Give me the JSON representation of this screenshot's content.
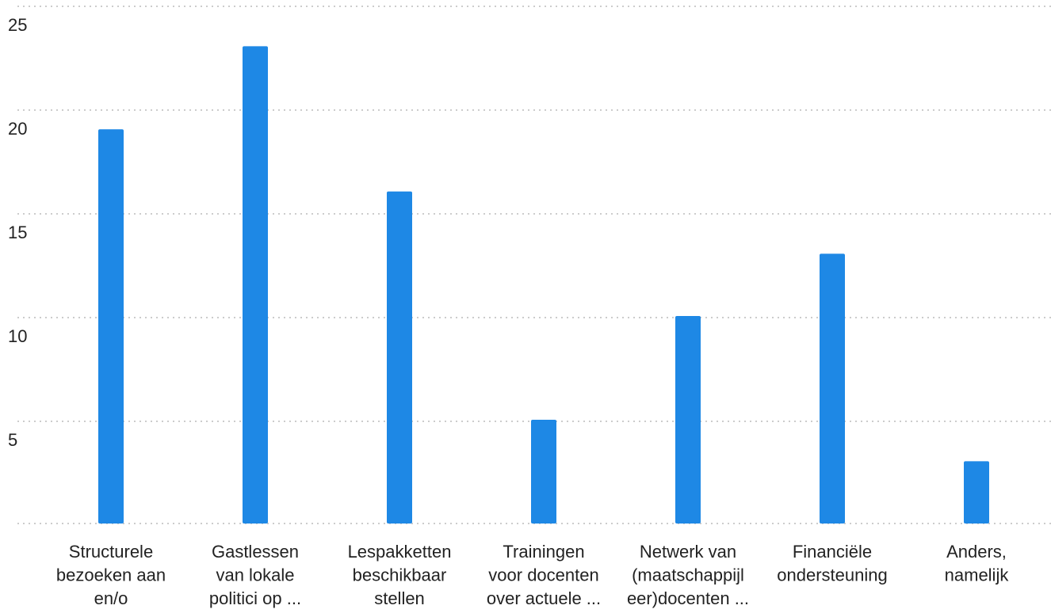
{
  "chart_data": {
    "type": "bar",
    "categories": [
      [
        "Structurele",
        "bezoeken aan",
        "en/o"
      ],
      [
        "Gastlessen",
        "van lokale",
        "politici op ..."
      ],
      [
        "Lespakketten",
        "beschikbaar",
        "stellen"
      ],
      [
        "Trainingen",
        "voor docenten",
        "over actuele ..."
      ],
      [
        "Netwerk van",
        "(maatschappijl",
        "eer)docenten ..."
      ],
      [
        "Financiële",
        "ondersteuning"
      ],
      [
        "Anders,",
        "namelijk"
      ]
    ],
    "values": [
      19,
      23,
      16,
      5,
      10,
      13,
      3
    ],
    "color": "#1e88e5",
    "ylim": [
      0,
      25
    ],
    "yticks": [
      5,
      10,
      15,
      20,
      25
    ],
    "grid": true
  }
}
